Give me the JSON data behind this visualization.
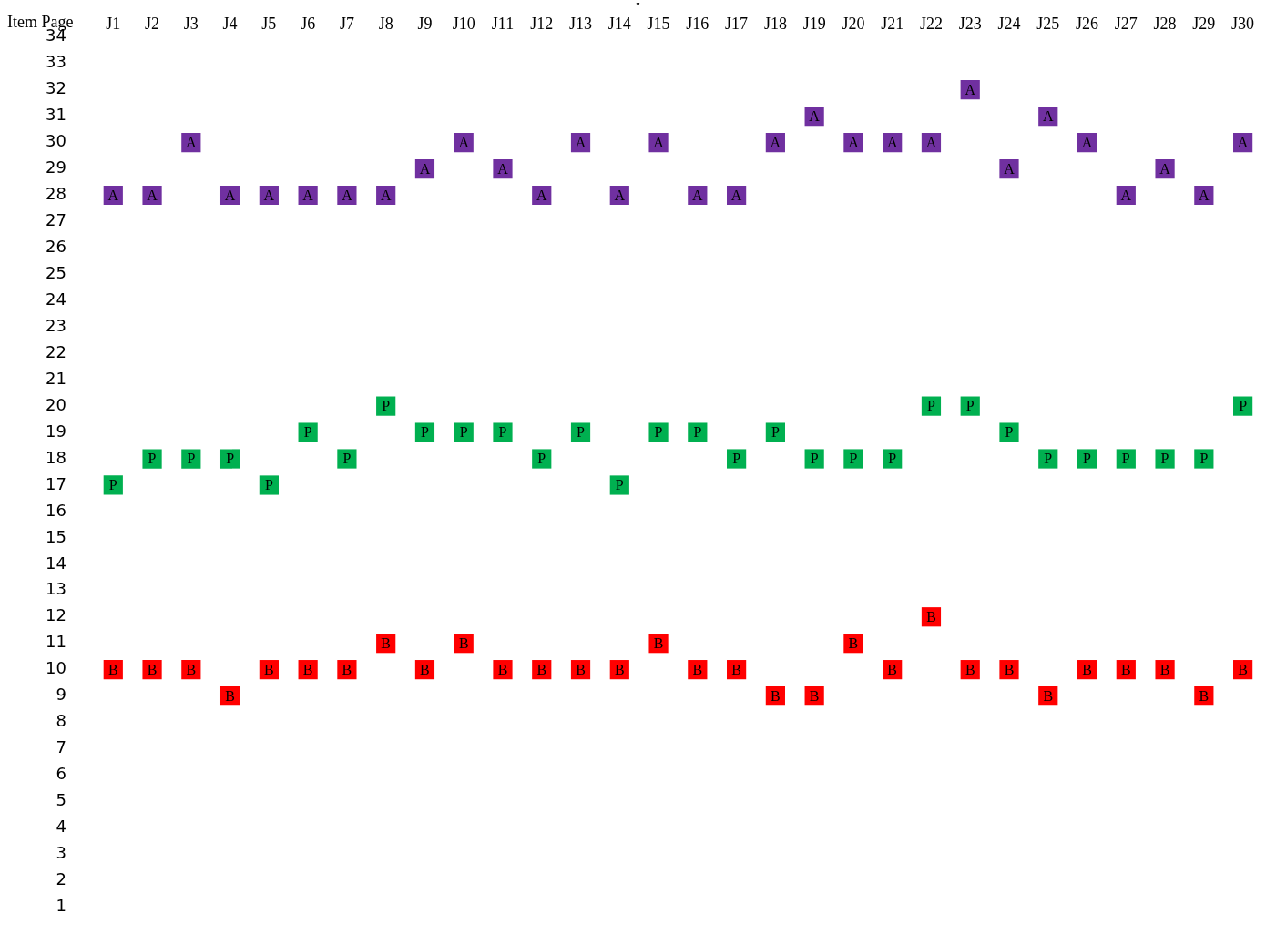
{
  "chart_data": {
    "type": "scatter",
    "title": "\"",
    "ylabel": "Item Page",
    "categories": [
      "J1",
      "J2",
      "J3",
      "J4",
      "J5",
      "J6",
      "J7",
      "J8",
      "J9",
      "J10",
      "J11",
      "J12",
      "J13",
      "J14",
      "J15",
      "J16",
      "J17",
      "J18",
      "J19",
      "J20",
      "J21",
      "J22",
      "J23",
      "J24",
      "J25",
      "J26",
      "J27",
      "J28",
      "J29",
      "J30"
    ],
    "series": [
      {
        "name": "A",
        "color": "#7030a0",
        "values": [
          28,
          28,
          30,
          28,
          28,
          28,
          28,
          28,
          29,
          30,
          29,
          28,
          30,
          28,
          30,
          28,
          28,
          30,
          31,
          30,
          30,
          30,
          32,
          29,
          31,
          30,
          28,
          29,
          28,
          30
        ]
      },
      {
        "name": "P",
        "color": "#00b050",
        "values": [
          17,
          18,
          18,
          18,
          17,
          19,
          18,
          20,
          19,
          19,
          19,
          18,
          19,
          17,
          19,
          19,
          18,
          19,
          18,
          18,
          18,
          20,
          20,
          19,
          18,
          18,
          18,
          18,
          18,
          20
        ]
      },
      {
        "name": "B",
        "color": "#ff0000",
        "values": [
          10,
          10,
          10,
          9,
          10,
          10,
          10,
          11,
          10,
          11,
          10,
          10,
          10,
          10,
          11,
          10,
          10,
          9,
          9,
          11,
          10,
          12,
          10,
          10,
          9,
          10,
          10,
          10,
          9,
          10
        ]
      }
    ],
    "ylim": [
      1,
      34
    ],
    "yticks": [
      1,
      2,
      3,
      4,
      5,
      6,
      7,
      8,
      9,
      10,
      11,
      12,
      13,
      14,
      15,
      16,
      17,
      18,
      19,
      20,
      21,
      22,
      23,
      24,
      25,
      26,
      27,
      28,
      29,
      30,
      31,
      32,
      33,
      34
    ],
    "marker": "square",
    "grid": false,
    "legend": false
  }
}
